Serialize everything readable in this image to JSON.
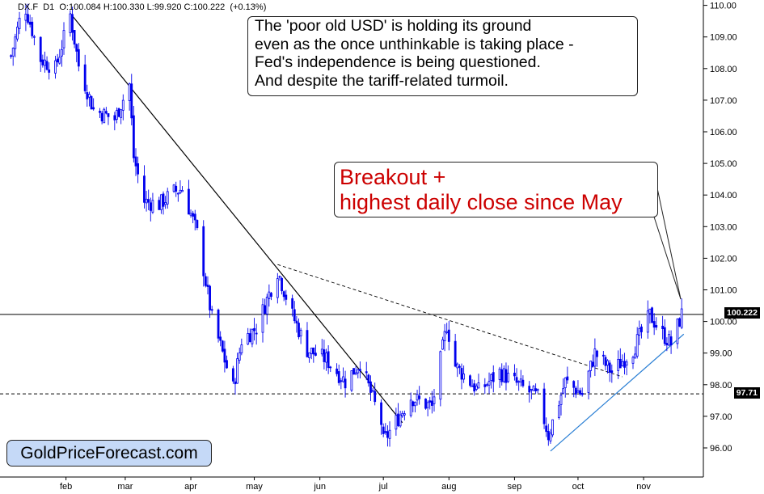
{
  "header": {
    "symbol": "DX.F",
    "timeframe": "D1",
    "open": "O:100.084",
    "high": "H:100.330",
    "low": "L:99.920",
    "close": "C:100.222",
    "change": "(+0.13%)"
  },
  "callouts": {
    "top_lines": [
      "The 'poor old USD' is holding its ground",
      "even as the once unthinkable is taking place -",
      " Fed's independence is being questioned.",
      "And despite the tariff-related turmoil."
    ],
    "breakout_lines": [
      "Breakout +",
      "highest daily close since May"
    ]
  },
  "brand": "GoldPriceForecast.com",
  "price_labels": {
    "current": "100.222",
    "support": "97.71"
  },
  "colors": {
    "candles": "#0000ee",
    "trendline_support": "#2a7fd4",
    "callout_red": "#cc0000",
    "brand_bg": "#c5d9f7"
  },
  "chart_data": {
    "type": "candlestick",
    "symbol": "DX.F",
    "timeframe": "D1",
    "x_ticks": [
      "feb",
      "mar",
      "apr",
      "may",
      "jun",
      "jul",
      "aug",
      "sep",
      "oct",
      "nov"
    ],
    "y_ticks": [
      "96.00",
      "97.00",
      "98.00",
      "99.00",
      "100.00",
      "101.00",
      "102.00",
      "103.00",
      "104.00",
      "105.00",
      "106.00",
      "107.00",
      "108.00",
      "109.00",
      "110.00"
    ],
    "ylim": [
      95.2,
      110.5
    ],
    "close_path": [
      {
        "x": "2025-01-06",
        "y": 108.4
      },
      {
        "x": "2025-01-10",
        "y": 109.5
      },
      {
        "x": "2025-01-13",
        "y": 109.9
      },
      {
        "x": "2025-01-20",
        "y": 108.3
      },
      {
        "x": "2025-01-27",
        "y": 108.0
      },
      {
        "x": "2025-02-03",
        "y": 109.7
      },
      {
        "x": "2025-02-07",
        "y": 108.1
      },
      {
        "x": "2025-02-14",
        "y": 106.7
      },
      {
        "x": "2025-02-24",
        "y": 106.4
      },
      {
        "x": "2025-03-03",
        "y": 107.5
      },
      {
        "x": "2025-03-05",
        "y": 105.2
      },
      {
        "x": "2025-03-10",
        "y": 103.8
      },
      {
        "x": "2025-03-17",
        "y": 103.7
      },
      {
        "x": "2025-03-24",
        "y": 104.1
      },
      {
        "x": "2025-03-28",
        "y": 104.2
      },
      {
        "x": "2025-04-04",
        "y": 102.8
      },
      {
        "x": "2025-04-11",
        "y": 100.1
      },
      {
        "x": "2025-04-21",
        "y": 97.9
      },
      {
        "x": "2025-04-25",
        "y": 99.4
      },
      {
        "x": "2025-05-02",
        "y": 99.8
      },
      {
        "x": "2025-05-12",
        "y": 101.6
      },
      {
        "x": "2025-05-19",
        "y": 100.2
      },
      {
        "x": "2025-05-26",
        "y": 99.1
      },
      {
        "x": "2025-06-04",
        "y": 98.8
      },
      {
        "x": "2025-06-13",
        "y": 98.1
      },
      {
        "x": "2025-06-20",
        "y": 98.7
      },
      {
        "x": "2025-06-30",
        "y": 96.8
      },
      {
        "x": "2025-07-01",
        "y": 96.2
      },
      {
        "x": "2025-07-14",
        "y": 97.6
      },
      {
        "x": "2025-07-24",
        "y": 97.3
      },
      {
        "x": "2025-07-31",
        "y": 99.9
      },
      {
        "x": "2025-08-04",
        "y": 98.6
      },
      {
        "x": "2025-08-15",
        "y": 97.8
      },
      {
        "x": "2025-08-25",
        "y": 98.4
      },
      {
        "x": "2025-09-05",
        "y": 97.9
      },
      {
        "x": "2025-09-12",
        "y": 97.6
      },
      {
        "x": "2025-09-17",
        "y": 96.4
      },
      {
        "x": "2025-09-25",
        "y": 98.1
      },
      {
        "x": "2025-10-03",
        "y": 97.7
      },
      {
        "x": "2025-10-09",
        "y": 99.0
      },
      {
        "x": "2025-10-17",
        "y": 98.4
      },
      {
        "x": "2025-10-27",
        "y": 99.1
      },
      {
        "x": "2025-11-04",
        "y": 100.2
      },
      {
        "x": "2025-11-10",
        "y": 99.6
      },
      {
        "x": "2025-11-14",
        "y": 99.3
      },
      {
        "x": "2025-11-19",
        "y": 100.222
      }
    ],
    "trendlines": [
      {
        "style": "solid-black",
        "from": {
          "x": "2025-02-03",
          "y": 109.75
        },
        "to": {
          "x": "2025-07-10",
          "y": 96.8
        }
      },
      {
        "style": "dashed-black",
        "from": {
          "x": "2025-05-12",
          "y": 101.8
        },
        "to": {
          "x": "2025-10-22",
          "y": 98.25
        }
      },
      {
        "style": "solid-blue",
        "from": {
          "x": "2025-09-18",
          "y": 95.9
        },
        "to": {
          "x": "2025-11-20",
          "y": 99.6
        }
      }
    ],
    "horizontal_lines": [
      {
        "style": "solid",
        "y": 100.222
      },
      {
        "style": "dashed",
        "y": 97.71
      }
    ]
  }
}
